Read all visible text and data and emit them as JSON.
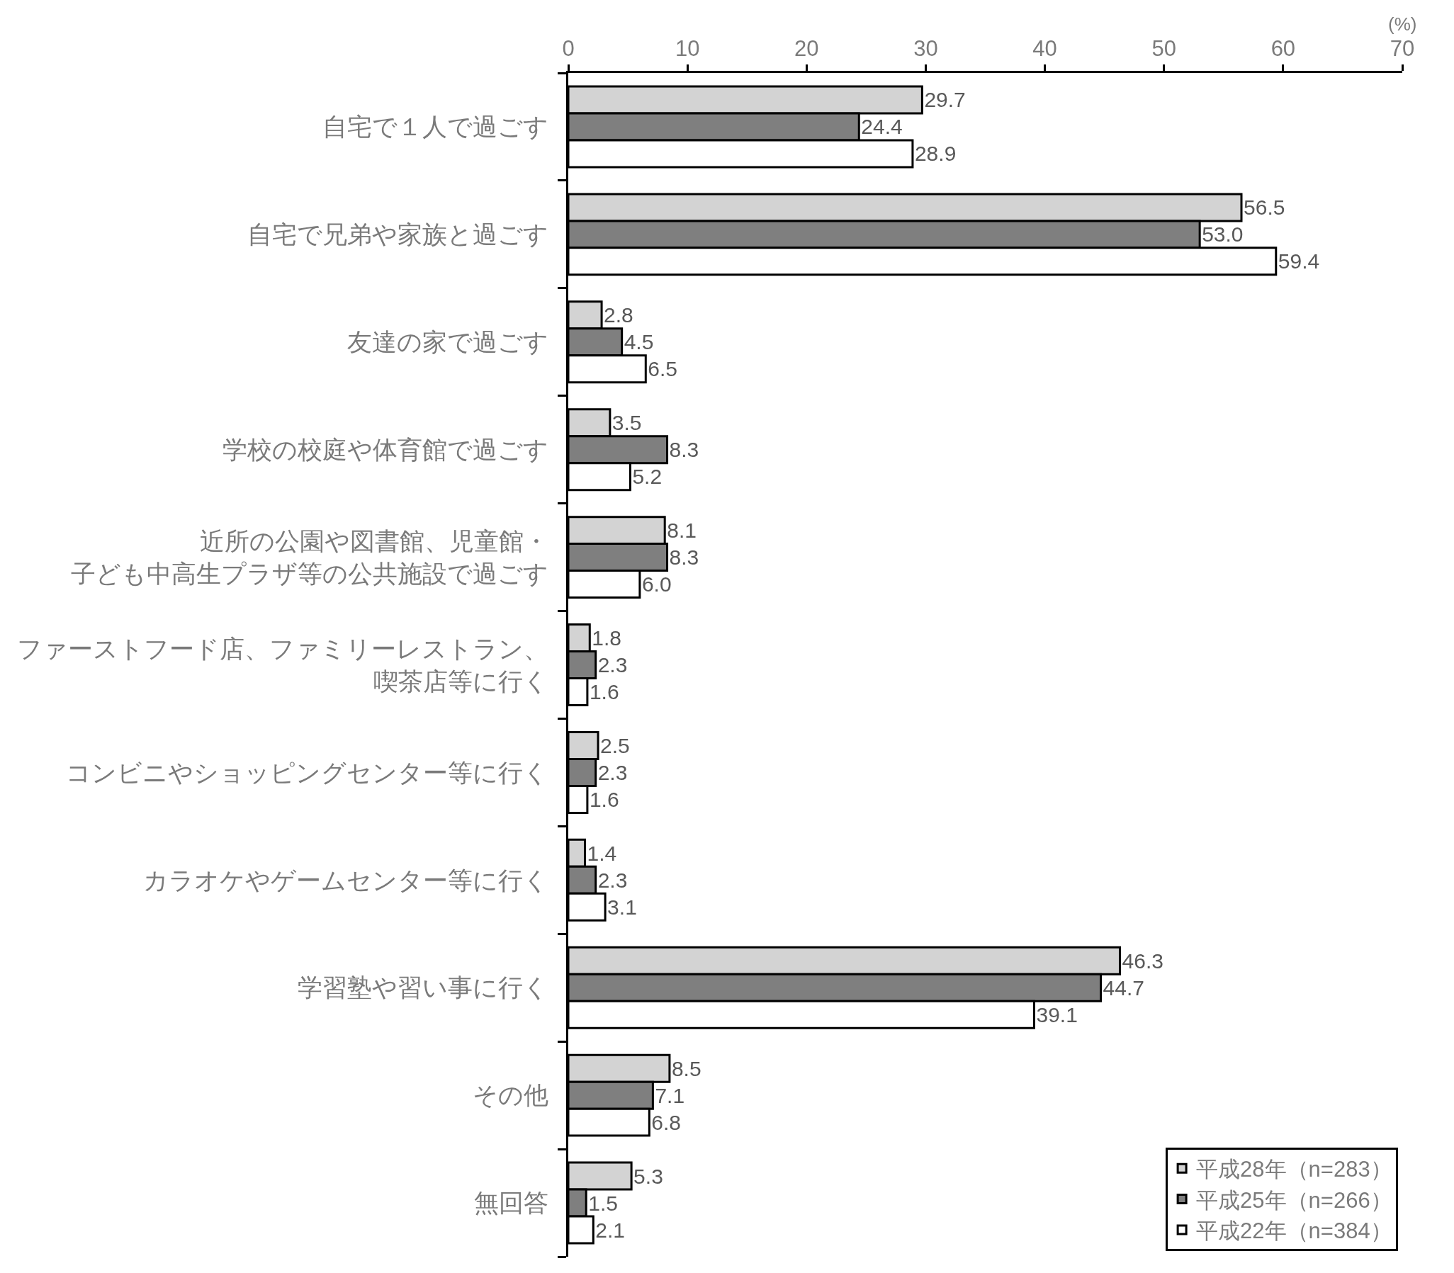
{
  "chart_data": {
    "type": "bar",
    "orientation": "horizontal",
    "xlabel": "(%)",
    "categories": [
      "自宅で１人で過ごす",
      "自宅で兄弟や家族と過ごす",
      "友達の家で過ごす",
      "学校の校庭や体育館で過ごす",
      "近所の公園や図書館、児童館・子ども中高生プラザ等の公共施設で過ごす",
      "ファーストフード店、ファミリーレストラン、喫茶店等に行く",
      "コンビニやショッピングセンター等に行く",
      "カラオケやゲームセンター等に行く",
      "学習塾や習い事に行く",
      "その他",
      "無回答"
    ],
    "series": [
      {
        "name": "平成28年（n=283）",
        "color": "#d3d3d3",
        "values": [
          29.7,
          56.5,
          2.8,
          3.5,
          8.1,
          1.8,
          2.5,
          1.4,
          46.3,
          8.5,
          5.3
        ],
        "value_labels": [
          "29.7",
          "56.5",
          "2.8",
          "3.5",
          "8.1",
          "1.8",
          "2.5",
          "1.4",
          "46.3",
          "8.5",
          "5.3"
        ]
      },
      {
        "name": "平成25年（n=266）",
        "color": "#7f7f7f",
        "values": [
          24.4,
          53.0,
          4.5,
          8.3,
          8.3,
          2.3,
          2.3,
          2.3,
          44.7,
          7.1,
          1.5
        ],
        "value_labels": [
          "24.4",
          "53.0",
          "4.5",
          "8.3",
          "8.3",
          "2.3",
          "2.3",
          "2.3",
          "44.7",
          "7.1",
          "1.5"
        ]
      },
      {
        "name": "平成22年（n=384）",
        "color": "#ffffff",
        "values": [
          28.9,
          59.4,
          6.5,
          5.2,
          6.0,
          1.6,
          1.6,
          3.1,
          39.1,
          6.8,
          2.1
        ],
        "value_labels": [
          "28.9",
          "59.4",
          "6.5",
          "5.2",
          "6.0",
          "1.6",
          "1.6",
          "3.1",
          "39.1",
          "6.8",
          "2.1"
        ]
      }
    ],
    "xlim": [
      0,
      70
    ],
    "xticks": [
      0,
      10,
      20,
      30,
      40,
      50,
      60,
      70
    ],
    "legend": "bottom right",
    "grid": false
  }
}
